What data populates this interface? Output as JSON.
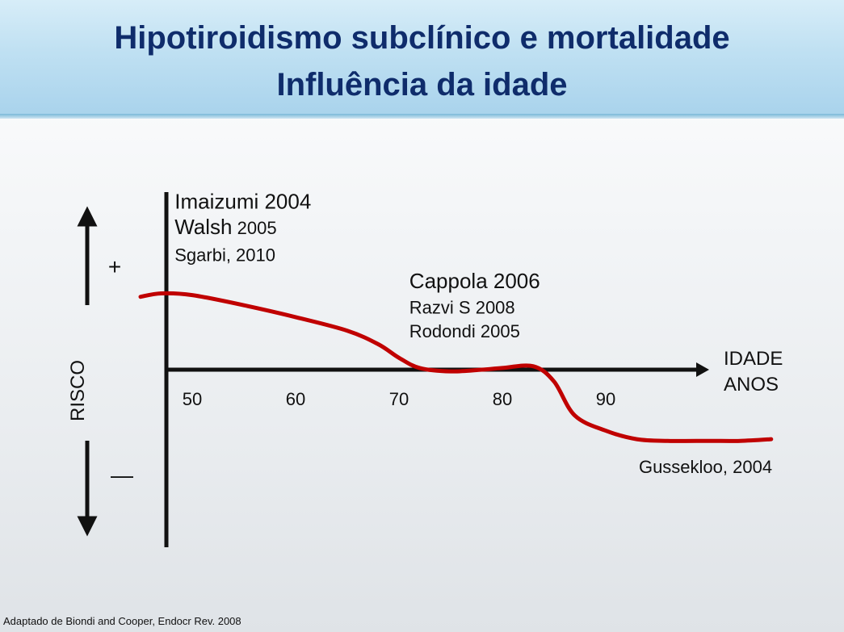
{
  "slide": {
    "title_line1": "Hipotiroidismo subclínico e mortalidade",
    "title_line2": "Influência da idade",
    "footnote": "Adaptado de Biondi and Cooper, Endocr Rev. 2008"
  },
  "chart_data": {
    "type": "line",
    "title": "",
    "xlabel_lines": [
      "IDADE",
      "ANOS"
    ],
    "ylabel": "RISCO",
    "y_plus_label": "+",
    "y_minus_label": "—",
    "x_ticks": [
      50,
      60,
      70,
      80,
      90
    ],
    "xlim": [
      47.5,
      100
    ],
    "ylim": [
      -1,
      1
    ],
    "series": [
      {
        "color": "#c00000",
        "x": [
          45,
          47,
          50,
          55,
          60,
          65,
          68,
          70,
          72,
          75,
          78,
          80,
          83,
          85,
          87,
          90,
          93,
          96,
          100,
          103,
          106
        ],
        "y": [
          0.43,
          0.45,
          0.44,
          0.38,
          0.31,
          0.23,
          0.15,
          0.07,
          0.01,
          -0.01,
          0.0,
          0.01,
          0.02,
          -0.07,
          -0.27,
          -0.36,
          -0.41,
          -0.42,
          -0.42,
          -0.42,
          -0.41
        ]
      }
    ],
    "annotations": [
      {
        "text": "Imaizumi 2004",
        "size": "large",
        "x": 48.3,
        "y": 0.95
      },
      {
        "text": "Walsh",
        "suffix": "2005",
        "size": "large",
        "x": 48.3,
        "y": 0.8
      },
      {
        "text": "Sgarbi, 2010",
        "size": "small",
        "x": 48.3,
        "y": 0.64
      },
      {
        "text": "Cappola 2006",
        "size": "large",
        "x": 71,
        "y": 0.48
      },
      {
        "text": "Razvi S 2008",
        "size": "small",
        "x": 71,
        "y": 0.33
      },
      {
        "text": "Rodondi 2005",
        "size": "small",
        "x": 71,
        "y": 0.19
      },
      {
        "text": "Gussekloo, 2004",
        "size": "small",
        "x": 93.2,
        "y": -0.61
      }
    ]
  }
}
